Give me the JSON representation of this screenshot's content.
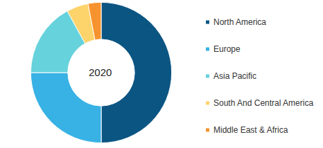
{
  "chart_data": {
    "type": "pie",
    "title": "2020",
    "categories": [
      "North America",
      "Europe",
      "Asia Pacific",
      "South And Central America",
      "Middle East & Africa"
    ],
    "values": [
      50,
      25,
      17,
      5,
      3
    ],
    "colors": [
      "#0b5583",
      "#38b2e4",
      "#66d2dc",
      "#fdd36b",
      "#f7932e"
    ],
    "legend": "right",
    "data_labels": false
  }
}
